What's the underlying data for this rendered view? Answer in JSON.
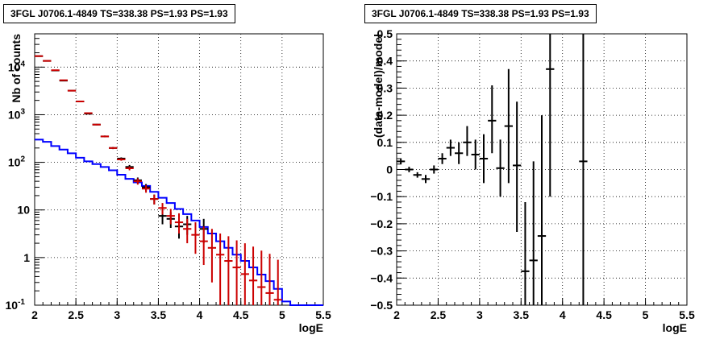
{
  "chart_data": [
    {
      "type": "line",
      "title": "3FGL J0706.1-4849 TS=338.38 PS=1.93 PS=1.93",
      "xlabel": "logE",
      "ylabel": "Nb of counts",
      "xlim": [
        2,
        5.5
      ],
      "ylim": [
        0.1,
        50000
      ],
      "yscale": "log",
      "grid": true,
      "xticks": [
        "2",
        "2.5",
        "3",
        "3.5",
        "4",
        "4.5",
        "5",
        "5.5"
      ],
      "yticks": [
        {
          "v": 0.1,
          "label": "10",
          "sup": "-1"
        },
        {
          "v": 1,
          "label": "1",
          "sup": ""
        },
        {
          "v": 10,
          "label": "10",
          "sup": ""
        },
        {
          "v": 100,
          "label": "10",
          "sup": "2"
        },
        {
          "v": 1000,
          "label": "10",
          "sup": "3"
        },
        {
          "v": 10000,
          "label": "10",
          "sup": "4"
        }
      ],
      "bin_width": 0.1,
      "series": [
        {
          "color": "#0000ff",
          "style": "step",
          "x": [
            2.0,
            2.1,
            2.2,
            2.3,
            2.4,
            2.5,
            2.6,
            2.7,
            2.8,
            2.9,
            3.0,
            3.1,
            3.2,
            3.3,
            3.4,
            3.5,
            3.6,
            3.7,
            3.8,
            3.9,
            4.0,
            4.1,
            4.2,
            4.3,
            4.4,
            4.5,
            4.6,
            4.7,
            4.8,
            4.9,
            5.0,
            5.1,
            5.2,
            5.3,
            5.4
          ],
          "values": [
            300,
            270,
            220,
            185,
            155,
            125,
            105,
            92,
            80,
            68,
            55,
            45,
            38,
            32,
            24,
            18,
            14,
            10.5,
            8.2,
            6.0,
            4.4,
            3.2,
            2.2,
            1.6,
            1.15,
            0.85,
            0.62,
            0.44,
            0.32,
            0.22,
            0.12,
            0.1,
            0.1,
            0.1,
            0.1
          ]
        },
        {
          "color": "#000000",
          "style": "errorbar",
          "x": [
            2.05,
            2.15,
            2.25,
            2.35,
            2.45,
            2.55,
            2.65,
            2.75,
            2.85,
            2.95,
            3.05,
            3.15,
            3.25,
            3.35,
            3.45,
            3.55,
            3.65,
            3.75,
            3.85,
            4.05
          ],
          "values": [
            17000,
            13500,
            8500,
            5200,
            3200,
            1900,
            1050,
            620,
            350,
            200,
            120,
            80,
            42,
            30,
            17,
            7.5,
            6.5,
            4.5,
            5.0,
            4.0
          ],
          "low": [
            16800,
            13300,
            8400,
            5100,
            3140,
            1860,
            1030,
            600,
            335,
            190,
            113,
            72,
            36,
            25,
            13,
            5,
            4.2,
            2.5,
            3.0,
            2.0
          ],
          "high": [
            17200,
            13700,
            8600,
            5300,
            3260,
            1940,
            1070,
            640,
            365,
            210,
            127,
            88,
            48,
            35,
            21,
            10,
            9,
            7,
            7.5,
            6.5
          ]
        },
        {
          "color": "#cc0000",
          "style": "errorbar",
          "x": [
            2.05,
            2.15,
            2.25,
            2.35,
            2.45,
            2.55,
            2.65,
            2.75,
            2.85,
            2.95,
            3.05,
            3.15,
            3.25,
            3.35,
            3.45,
            3.55,
            3.65,
            3.75,
            3.85,
            3.95,
            4.05,
            4.15,
            4.25,
            4.35,
            4.45,
            4.55,
            4.65,
            4.75,
            4.85,
            4.95
          ],
          "values": [
            17000,
            13500,
            8600,
            5300,
            3200,
            1900,
            1080,
            620,
            350,
            200,
            115,
            75,
            40,
            28,
            17,
            11,
            7.5,
            5.5,
            4.0,
            3.0,
            2.2,
            1.6,
            1.15,
            0.85,
            0.62,
            0.45,
            0.33,
            0.24,
            0.18,
            0.13
          ],
          "low": [
            16900,
            13400,
            8500,
            5250,
            3170,
            1880,
            1060,
            605,
            340,
            192,
            108,
            68,
            34,
            23,
            13,
            8,
            5,
            3.2,
            2.0,
            1.2,
            0.7,
            0.3,
            0.1,
            0.1,
            0.1,
            0.1,
            0.1,
            0.1,
            0.1,
            0.1
          ],
          "high": [
            17100,
            13600,
            8700,
            5350,
            3230,
            1920,
            1100,
            635,
            360,
            208,
            122,
            82,
            46,
            33,
            21,
            14,
            10.5,
            8.5,
            6.5,
            5.5,
            4.5,
            4.0,
            3.2,
            2.8,
            2.3,
            2.0,
            1.7,
            1.4,
            1.2,
            0.9
          ]
        }
      ]
    },
    {
      "type": "scatter",
      "title": "3FGL J0706.1-4849 TS=338.38 PS=1.93 PS=1.93",
      "xlabel": "logE",
      "ylabel": "(data-model)/model",
      "xlim": [
        2,
        5.5
      ],
      "ylim": [
        -0.5,
        0.5
      ],
      "grid": true,
      "xticks": [
        "2",
        "2.5",
        "3",
        "3.5",
        "4",
        "4.5",
        "5",
        "5.5"
      ],
      "yticks": [
        "−0.5",
        "−0.4",
        "−0.3",
        "−0.2",
        "−0.1",
        "0",
        "0.1",
        "0.2",
        "0.3",
        "0.4",
        "0.5"
      ],
      "bin_width": 0.1,
      "series": [
        {
          "color": "#000000",
          "style": "errorbar",
          "x": [
            2.05,
            2.15,
            2.25,
            2.35,
            2.45,
            2.55,
            2.65,
            2.75,
            2.85,
            2.95,
            3.05,
            3.15,
            3.25,
            3.35,
            3.45,
            3.55,
            3.65,
            3.75,
            3.85,
            4.25
          ],
          "values": [
            0.03,
            0.0,
            -0.02,
            -0.035,
            0.0,
            0.04,
            0.08,
            0.06,
            0.1,
            0.055,
            0.04,
            0.18,
            0.005,
            0.16,
            0.015,
            -0.375,
            -0.335,
            -0.245,
            0.37,
            0.03
          ],
          "low": [
            0.02,
            -0.01,
            -0.03,
            -0.05,
            -0.015,
            0.02,
            0.05,
            0.02,
            0.05,
            0.0,
            -0.05,
            0.06,
            -0.1,
            -0.05,
            -0.23,
            -0.62,
            -0.7,
            -0.7,
            -0.1,
            -0.7
          ],
          "high": [
            0.04,
            0.01,
            -0.01,
            -0.02,
            0.015,
            0.06,
            0.11,
            0.1,
            0.16,
            0.11,
            0.13,
            0.31,
            0.11,
            0.37,
            0.25,
            -0.12,
            0.03,
            0.2,
            0.8,
            0.8
          ]
        }
      ]
    }
  ]
}
